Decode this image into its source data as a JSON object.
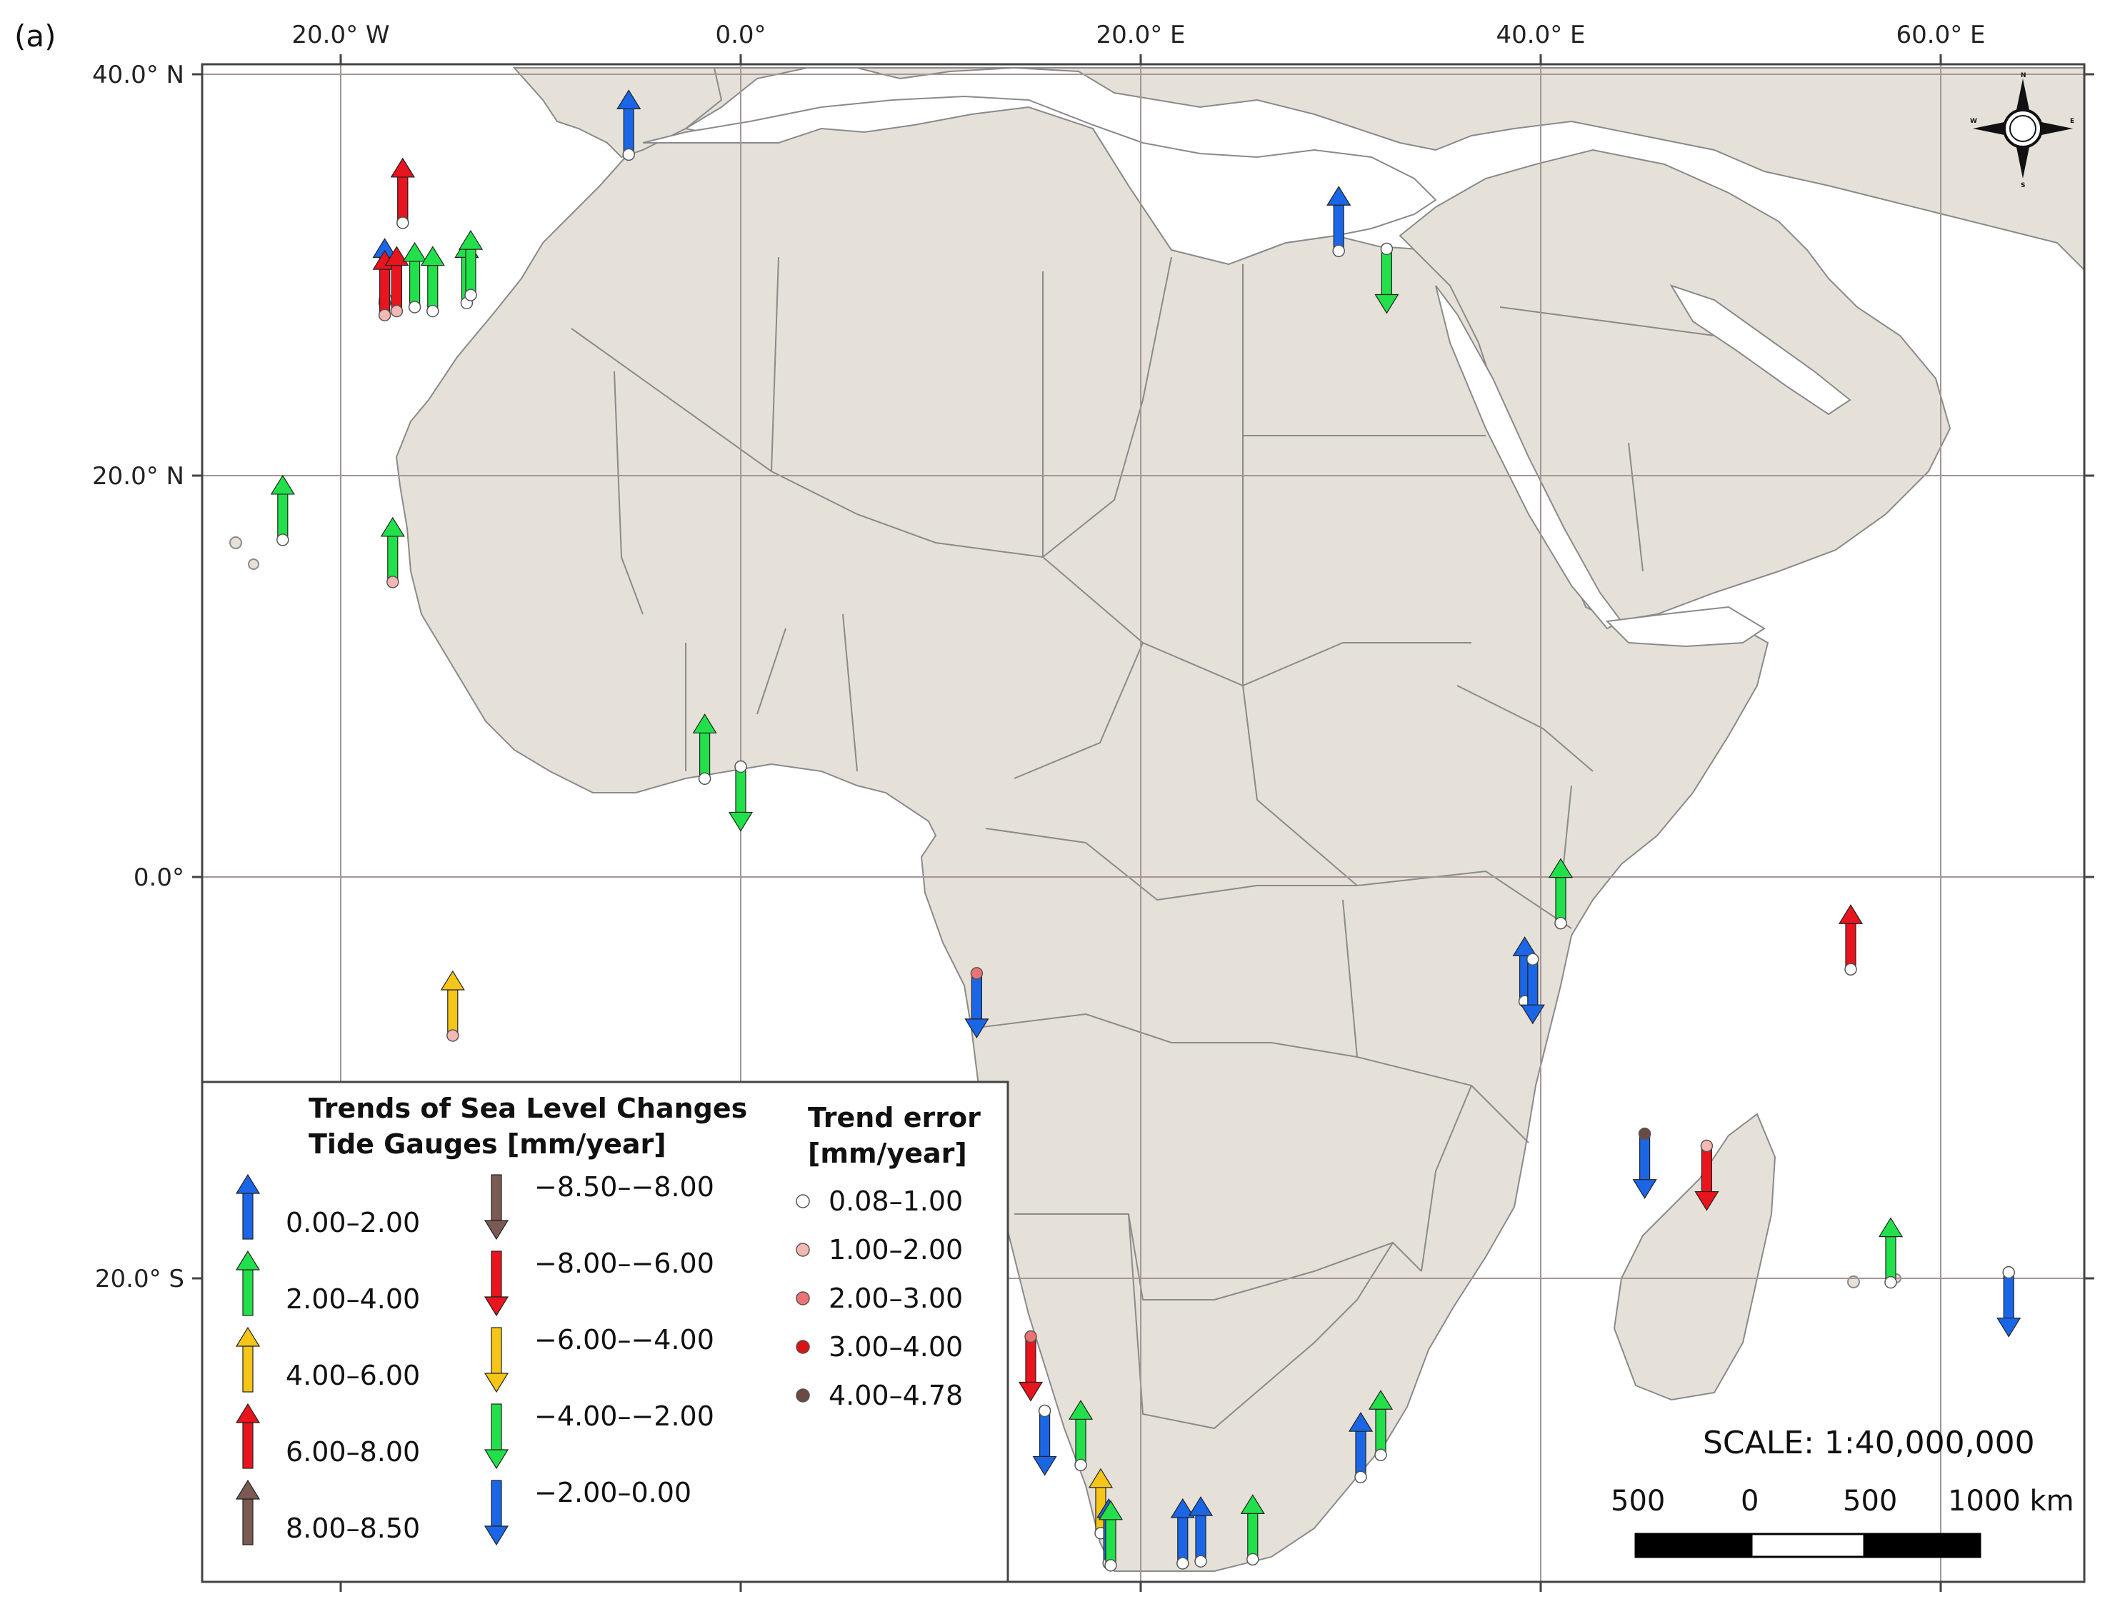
{
  "figure": {
    "panel_label": "(a)"
  },
  "colors": {
    "land": "#e5e1d8",
    "sea": "#ffffff",
    "border": "#8a8a8a",
    "graticule": "#a69595",
    "frame": "#444444"
  },
  "axes": {
    "lon_ticks": [
      {
        "lon": -20,
        "label": "20.0° W"
      },
      {
        "lon": 0,
        "label": "0.0°"
      },
      {
        "lon": 20,
        "label": "20.0° E"
      },
      {
        "lon": 40,
        "label": "40.0° E"
      },
      {
        "lon": 60,
        "label": "60.0° E"
      }
    ],
    "lat_ticks": [
      {
        "lat": 40,
        "label": "40.0° N"
      },
      {
        "lat": 20,
        "label": "20.0° N"
      },
      {
        "lat": 0,
        "label": "0.0°"
      },
      {
        "lat": -20,
        "label": "20.0° S"
      }
    ]
  },
  "legend": {
    "trend_title_1": "Trends of Sea Level Changes",
    "trend_title_2": "Tide Gauges [mm/year]",
    "error_title_1": "Trend error",
    "error_title_2": "[mm/year]",
    "trend_classes": [
      {
        "label": "0.00–2.00",
        "color": "#1a66e6",
        "dir": "up"
      },
      {
        "label": "2.00–4.00",
        "color": "#22e04a",
        "dir": "up"
      },
      {
        "label": "4.00–6.00",
        "color": "#f5c518",
        "dir": "up"
      },
      {
        "label": "6.00–8.00",
        "color": "#e8141e",
        "dir": "up"
      },
      {
        "label": "8.00–8.50",
        "color": "#7a5a52",
        "dir": "up"
      },
      {
        "label": "−8.50–−8.00",
        "color": "#7a5a52",
        "dir": "down"
      },
      {
        "label": "−8.00–−6.00",
        "color": "#e8141e",
        "dir": "down"
      },
      {
        "label": "−6.00–−4.00",
        "color": "#f5c518",
        "dir": "down"
      },
      {
        "label": "−4.00–−2.00",
        "color": "#22e04a",
        "dir": "down"
      },
      {
        "label": "−2.00–0.00",
        "color": "#1a66e6",
        "dir": "down"
      }
    ],
    "error_classes": [
      {
        "label": "0.08–1.00",
        "color": "#ffffff"
      },
      {
        "label": "1.00–2.00",
        "color": "#f4b8b4"
      },
      {
        "label": "2.00–3.00",
        "color": "#ee7272"
      },
      {
        "label": "3.00–4.00",
        "color": "#d81414"
      },
      {
        "label": "4.00–4.78",
        "color": "#6b4a44"
      }
    ]
  },
  "scale": {
    "text": "SCALE: 1:40,000,000",
    "labels": [
      "500",
      "0",
      "500",
      "1000 km"
    ]
  },
  "compass": {
    "n": "N",
    "s": "S",
    "e": "E",
    "w": "W"
  },
  "gauges": [
    {
      "lon": -5.6,
      "lat": 36.0,
      "trend": "0.00–2.00",
      "error": "0.08–1.00"
    },
    {
      "lon": -16.9,
      "lat": 32.6,
      "trend": "0.00–2.00",
      "error": "0.08–1.00"
    },
    {
      "lon": -16.9,
      "lat": 32.6,
      "trend": "6.00–8.00",
      "error": "0.08–1.00"
    },
    {
      "lon": -17.8,
      "lat": 28.6,
      "trend": "0.00–2.00",
      "error": "0.08–1.00"
    },
    {
      "lon": -17.8,
      "lat": 28.0,
      "trend": "6.00–8.00",
      "error": "1.00–2.00"
    },
    {
      "lon": -17.2,
      "lat": 28.2,
      "trend": "6.00–8.00",
      "error": "1.00–2.00"
    },
    {
      "lon": -16.3,
      "lat": 28.4,
      "trend": "2.00–4.00",
      "error": "0.08–1.00"
    },
    {
      "lon": -15.4,
      "lat": 28.2,
      "trend": "2.00–4.00",
      "error": "0.08–1.00"
    },
    {
      "lon": -13.7,
      "lat": 28.6,
      "trend": "2.00–4.00",
      "error": "0.08–1.00"
    },
    {
      "lon": -13.5,
      "lat": 29.0,
      "trend": "2.00–4.00",
      "error": "0.08–1.00"
    },
    {
      "lon": -22.9,
      "lat": 16.8,
      "trend": "2.00–4.00",
      "error": "0.08–1.00"
    },
    {
      "lon": -17.4,
      "lat": 14.7,
      "trend": "2.00–4.00",
      "error": "1.00–2.00"
    },
    {
      "lon": -1.8,
      "lat": 4.9,
      "trend": "2.00–4.00",
      "error": "0.08–1.00"
    },
    {
      "lon": 0.0,
      "lat": 5.5,
      "trend": "−4.00–−2.00",
      "error": "0.08–1.00"
    },
    {
      "lon": -14.4,
      "lat": -7.9,
      "trend": "4.00–6.00",
      "error": "1.00–2.00"
    },
    {
      "lon": 29.9,
      "lat": 31.2,
      "trend": "0.00–2.00",
      "error": "0.08–1.00"
    },
    {
      "lon": 32.3,
      "lat": 31.3,
      "trend": "−4.00–−2.00",
      "error": "0.08–1.00"
    },
    {
      "lon": 11.8,
      "lat": -4.8,
      "trend": "−2.00–0.00",
      "error": "2.00–3.00"
    },
    {
      "lon": 41.0,
      "lat": -2.3,
      "trend": "2.00–4.00",
      "error": "0.08–1.00"
    },
    {
      "lon": 39.2,
      "lat": -6.2,
      "trend": "0.00–2.00",
      "error": "0.08–1.00"
    },
    {
      "lon": 39.6,
      "lat": -4.1,
      "trend": "−2.00–0.00",
      "error": "0.08–1.00"
    },
    {
      "lon": 55.5,
      "lat": -4.6,
      "trend": "6.00–8.00",
      "error": "0.08–1.00"
    },
    {
      "lon": 45.2,
      "lat": -12.8,
      "trend": "−2.00–0.00",
      "error": "4.00–4.78"
    },
    {
      "lon": 48.3,
      "lat": -13.4,
      "trend": "−8.00–−6.00",
      "error": "1.00–2.00"
    },
    {
      "lon": 57.5,
      "lat": -20.2,
      "trend": "2.00–4.00",
      "error": "0.08–1.00"
    },
    {
      "lon": 63.4,
      "lat": -19.7,
      "trend": "−2.00–0.00",
      "error": "0.08–1.00"
    },
    {
      "lon": 14.5,
      "lat": -22.9,
      "trend": "−8.00–−6.00",
      "error": "2.00–3.00"
    },
    {
      "lon": 15.2,
      "lat": -26.6,
      "trend": "−2.00–0.00",
      "error": "0.08–1.00"
    },
    {
      "lon": 17.0,
      "lat": -29.3,
      "trend": "2.00–4.00",
      "error": "0.08–1.00"
    },
    {
      "lon": 18.0,
      "lat": -32.7,
      "trend": "4.00–6.00",
      "error": "0.08–1.00"
    },
    {
      "lon": 18.4,
      "lat": -34.2,
      "trend": "0.00–2.00",
      "error": "0.08–1.00"
    },
    {
      "lon": 18.5,
      "lat": -34.3,
      "trend": "2.00–4.00",
      "error": "0.08–1.00"
    },
    {
      "lon": 22.1,
      "lat": -34.2,
      "trend": "0.00–2.00",
      "error": "0.08–1.00"
    },
    {
      "lon": 23.0,
      "lat": -34.1,
      "trend": "0.00–2.00",
      "error": "0.08–1.00"
    },
    {
      "lon": 25.6,
      "lat": -34.0,
      "trend": "2.00–4.00",
      "error": "0.08–1.00"
    },
    {
      "lon": 31.0,
      "lat": -29.9,
      "trend": "0.00–2.00",
      "error": "0.08–1.00"
    },
    {
      "lon": 32.0,
      "lat": -28.8,
      "trend": "2.00–4.00",
      "error": "0.08–1.00"
    }
  ]
}
